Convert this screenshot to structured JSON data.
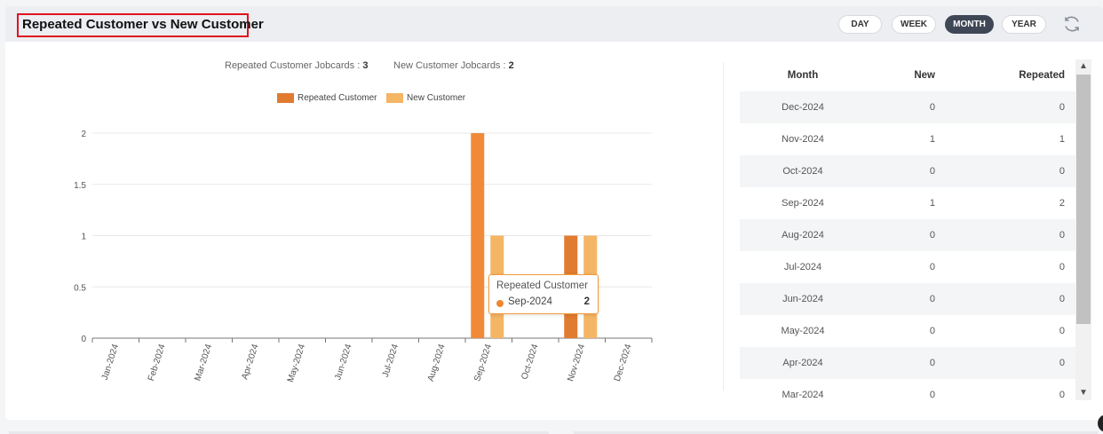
{
  "header": {
    "title": "Repeated Customer vs New Customer",
    "period_buttons": [
      {
        "label": "DAY",
        "active": false
      },
      {
        "label": "WEEK",
        "active": false
      },
      {
        "label": "MONTH",
        "active": true
      },
      {
        "label": "YEAR",
        "active": false
      }
    ],
    "refresh_icon": "refresh-icon"
  },
  "summary": {
    "repeated_label": "Repeated Customer Jobcards : ",
    "repeated_value": "3",
    "new_label": "New Customer Jobcards : ",
    "new_value": "2"
  },
  "legend": [
    {
      "label": "Repeated Customer",
      "color": "#e07b30"
    },
    {
      "label": "New Customer",
      "color": "#f4b565"
    }
  ],
  "tooltip": {
    "title": "Repeated Customer",
    "label": "Sep-2024",
    "value": "2"
  },
  "chart_data": {
    "type": "bar",
    "categories": [
      "Jan-2024",
      "Feb-2024",
      "Mar-2024",
      "Apr-2024",
      "May-2024",
      "Jun-2024",
      "Jul-2024",
      "Aug-2024",
      "Sep-2024",
      "Oct-2024",
      "Nov-2024",
      "Dec-2024"
    ],
    "series": [
      {
        "name": "Repeated Customer",
        "values": [
          0,
          0,
          0,
          0,
          0,
          0,
          0,
          0,
          2,
          0,
          1,
          0
        ],
        "color": "#f08a38",
        "dim_color": "#e07b30"
      },
      {
        "name": "New Customer",
        "values": [
          0,
          0,
          0,
          0,
          0,
          0,
          0,
          0,
          1,
          0,
          1,
          0
        ],
        "color": "#f4b565"
      }
    ],
    "ylim": [
      0,
      2
    ],
    "yticks": [
      "0",
      "0.5",
      "1",
      "1.5",
      "2"
    ],
    "grid": true,
    "legend_position": "top-center"
  },
  "table": {
    "headers": [
      "Month",
      "New",
      "Repeated"
    ],
    "rows": [
      {
        "month": "Dec-2024",
        "new": "0",
        "repeated": "0"
      },
      {
        "month": "Nov-2024",
        "new": "1",
        "repeated": "1"
      },
      {
        "month": "Oct-2024",
        "new": "0",
        "repeated": "0"
      },
      {
        "month": "Sep-2024",
        "new": "1",
        "repeated": "2"
      },
      {
        "month": "Aug-2024",
        "new": "0",
        "repeated": "0"
      },
      {
        "month": "Jul-2024",
        "new": "0",
        "repeated": "0"
      },
      {
        "month": "Jun-2024",
        "new": "0",
        "repeated": "0"
      },
      {
        "month": "May-2024",
        "new": "0",
        "repeated": "0"
      },
      {
        "month": "Apr-2024",
        "new": "0",
        "repeated": "0"
      },
      {
        "month": "Mar-2024",
        "new": "0",
        "repeated": "0"
      }
    ]
  }
}
